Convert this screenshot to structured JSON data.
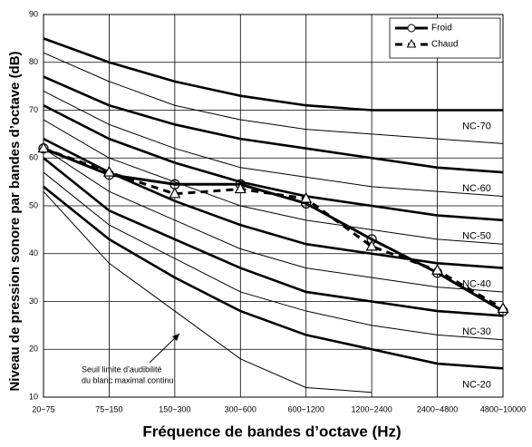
{
  "chart_data": {
    "type": "line",
    "x_label": "Fréquence de bandes d’octave (Hz)",
    "y_label": "Niveau de pression sonore par bandes d’octave (dB)",
    "categories": [
      "20~75",
      "75~150",
      "150~300",
      "300~600",
      "600~1200",
      "1200~2400",
      "2400~4800",
      "4800~10000"
    ],
    "ylim": [
      10,
      90
    ],
    "yticks": [
      10,
      20,
      30,
      40,
      50,
      60,
      70,
      80,
      90
    ],
    "grid": true,
    "series": [
      {
        "name": "Froid",
        "color": "#000000",
        "dash": false,
        "marker": "circle",
        "values": [
          62,
          56.5,
          54.5,
          54.5,
          50.5,
          43,
          36,
          28
        ]
      },
      {
        "name": "Chaud",
        "color": "#000000",
        "dash": true,
        "marker": "triangle",
        "values": [
          62,
          57,
          52.5,
          53.5,
          51.5,
          41.5,
          36.5,
          28.5
        ]
      }
    ],
    "nc_curves": [
      {
        "name": "NC-70",
        "width": 2.6,
        "values": [
          85,
          80,
          76,
          73,
          71,
          70,
          70,
          70
        ]
      },
      {
        "width": 1,
        "values": [
          82,
          76,
          71,
          68,
          66,
          65,
          64,
          63
        ]
      },
      {
        "name": "NC-60",
        "width": 2.6,
        "values": [
          77,
          71,
          67,
          64,
          62,
          60,
          58,
          57
        ]
      },
      {
        "width": 1,
        "values": [
          74,
          67,
          62,
          58,
          56,
          54,
          53,
          52
        ]
      },
      {
        "name": "NC-50",
        "width": 2.6,
        "values": [
          71,
          64,
          59,
          55,
          52,
          50,
          48,
          47
        ]
      },
      {
        "width": 1,
        "values": [
          68,
          60,
          55,
          50,
          47,
          45,
          43,
          42
        ]
      },
      {
        "name": "NC-40",
        "width": 2.6,
        "values": [
          64,
          57,
          51,
          46,
          42,
          40,
          38,
          37
        ]
      },
      {
        "width": 1,
        "values": [
          62,
          53,
          47,
          41,
          37,
          35,
          33,
          32
        ]
      },
      {
        "name": "NC-30",
        "width": 2.6,
        "values": [
          60,
          49,
          43,
          37,
          32,
          30,
          28,
          27
        ]
      },
      {
        "width": 1,
        "values": [
          57,
          46,
          39,
          32,
          28,
          25,
          23,
          22
        ]
      },
      {
        "name": "NC-20",
        "width": 2.6,
        "values": [
          54,
          43,
          35,
          28,
          23,
          20,
          17,
          16
        ]
      },
      {
        "width": 1,
        "values": [
          53,
          38,
          28,
          18,
          12,
          11,
          null,
          null
        ]
      }
    ],
    "annotation": [
      "Seuil limite d’audibilité",
      "du blanc maximal continu"
    ]
  }
}
